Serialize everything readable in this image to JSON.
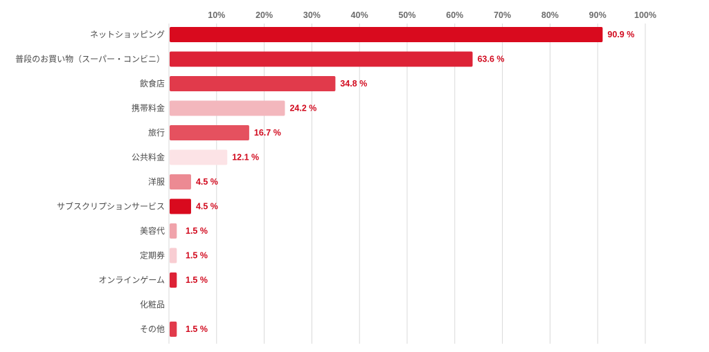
{
  "chart_data": {
    "type": "bar",
    "orientation": "horizontal",
    "title": "",
    "xlabel": "",
    "ylabel": "",
    "xlim": [
      0,
      100
    ],
    "x_ticks": [
      "10%",
      "20%",
      "30%",
      "40%",
      "50%",
      "60%",
      "70%",
      "80%",
      "90%",
      "100%"
    ],
    "grid": true,
    "legend": "none",
    "value_label_suffix": " %",
    "categories": [
      "ネットショッピング",
      "普段のお買い物（スーパー・コンビニ）",
      "飲食店",
      "携帯料金",
      "旅行",
      "公共料金",
      "洋服",
      "サブスクリプションサービス",
      "美容代",
      "定期券",
      "オンラインゲーム",
      "化粧品",
      "その他"
    ],
    "values": [
      90.9,
      63.6,
      34.8,
      24.2,
      16.7,
      12.1,
      4.5,
      4.5,
      1.5,
      1.5,
      1.5,
      null,
      1.5
    ],
    "bar_colors": [
      "#d90a1e",
      "#dd2236",
      "#e13a4b",
      "#f3b7bd",
      "#e5515f",
      "#fce3e6",
      "#ec8a93",
      "#d90a1e",
      "#f0a3ab",
      "#f8cdd2",
      "#dd2236",
      "#e9e9e9",
      "#e13a4b"
    ],
    "label_color": "#d10a1e"
  }
}
